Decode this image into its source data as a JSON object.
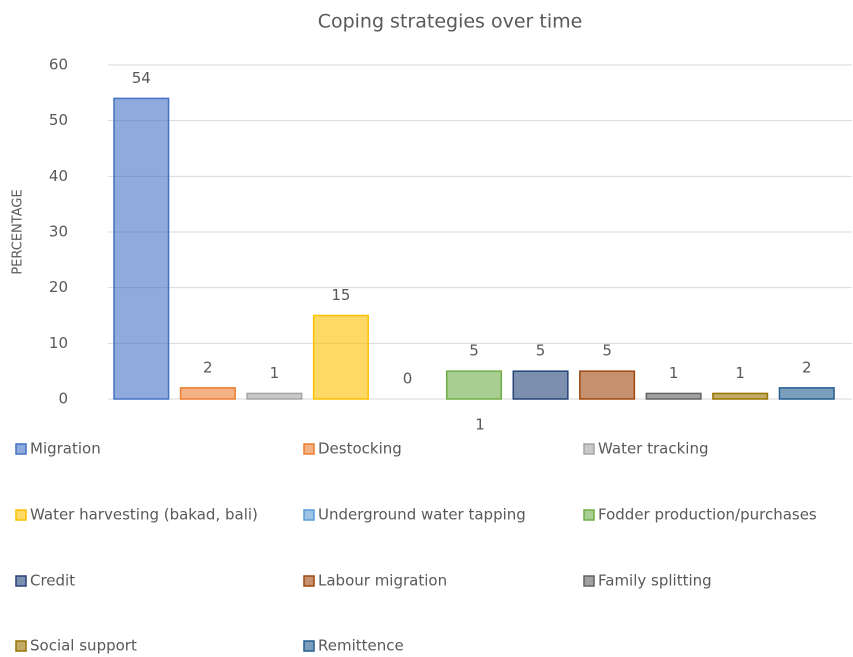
{
  "chart_data": {
    "type": "bar",
    "title": "Coping strategies over time",
    "y_label": "PERCENTAGE",
    "categories": [
      "1"
    ],
    "series": [
      {
        "name": "Migration",
        "color": "#4472c4",
        "values": [
          54
        ]
      },
      {
        "name": "Destocking",
        "color": "#ed7d31",
        "values": [
          2
        ]
      },
      {
        "name": "Water tracking",
        "color": "#a5a5a5",
        "values": [
          1
        ]
      },
      {
        "name": "Water harvesting (bakad, bali)",
        "color": "#ffc000",
        "values": [
          15
        ]
      },
      {
        "name": "Underground water tapping",
        "color": "#5b9bd5",
        "values": [
          0
        ]
      },
      {
        "name": "Fodder production/purchases",
        "color": "#70ad47",
        "values": [
          5
        ]
      },
      {
        "name": "Credit",
        "color": "#264478",
        "values": [
          5
        ]
      },
      {
        "name": "Labour migration",
        "color": "#9e480e",
        "values": [
          5
        ]
      },
      {
        "name": "Family splitting",
        "color": "#636363",
        "values": [
          1
        ]
      },
      {
        "name": "Social support",
        "color": "#997300",
        "values": [
          1
        ]
      },
      {
        "name": "Remittence",
        "color": "#255e91",
        "values": [
          2
        ]
      }
    ],
    "ylim": [
      0,
      60
    ],
    "yticks": [
      0,
      10,
      20,
      30,
      40,
      50,
      60
    ],
    "grid": true,
    "legend": "bottom"
  }
}
